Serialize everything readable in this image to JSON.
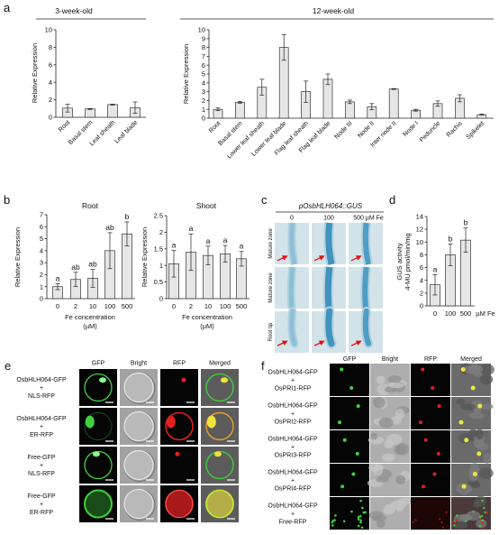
{
  "panel_labels": [
    "a",
    "b",
    "c",
    "d",
    "e",
    "f"
  ],
  "colors": {
    "bar_fill": "#e6e6e6",
    "bar_stroke": "#333333",
    "gfp": "#3fd23f",
    "rfp": "#e02020",
    "merge_yellow": "#f0e43a",
    "gus_stain": "#3f93bd",
    "arrow": "#e01010"
  },
  "chart_data": [
    {
      "type": "bar",
      "title": "3-week-old",
      "ylabel": "Relative Expression",
      "categories": [
        "Root",
        "Basal stem",
        "Leaf sheath",
        "Leaf blade"
      ],
      "values": [
        1.05,
        0.95,
        1.45,
        1.1
      ],
      "errors": [
        0.45,
        0.05,
        0.05,
        0.65
      ],
      "ylim": [
        0,
        10
      ],
      "yticks": [
        0,
        2,
        4,
        6,
        8,
        10
      ]
    },
    {
      "type": "bar",
      "title": "12-week-old",
      "ylabel": "Relative Expression",
      "categories": [
        "Root",
        "Basal stem",
        "Lower leaf sheath",
        "Lower leaf blade",
        "Flag leaf sheath",
        "Flag leaf blade",
        "Node III",
        "Node II",
        "Inter node II",
        "Node I",
        "Peduncle",
        "Rachis",
        "Spikelet"
      ],
      "values": [
        1.0,
        1.8,
        3.5,
        8.0,
        3.0,
        4.4,
        1.85,
        1.3,
        3.3,
        0.9,
        1.65,
        2.25,
        0.4
      ],
      "errors": [
        0.15,
        0.1,
        0.9,
        1.45,
        1.2,
        0.6,
        0.2,
        0.35,
        0.05,
        0.1,
        0.3,
        0.4,
        0.05
      ],
      "ylim": [
        0,
        10
      ],
      "yticks": [
        0,
        1,
        2,
        3,
        4,
        5,
        6,
        7,
        8,
        9,
        10
      ]
    },
    {
      "type": "bar",
      "title": "Root",
      "ylabel": "Relative Expression",
      "xlabel": [
        "Fe concentration",
        "(µM)"
      ],
      "categories": [
        "0",
        "2",
        "10",
        "100",
        "500"
      ],
      "values": [
        1.0,
        1.6,
        1.7,
        4.0,
        5.4
      ],
      "errors": [
        0.25,
        0.6,
        0.75,
        1.5,
        1.0
      ],
      "letters": [
        "a",
        "ab",
        "ab",
        "ab",
        "b"
      ],
      "ylim": [
        0,
        7
      ],
      "yticks": [
        0,
        1,
        2,
        3,
        4,
        5,
        6,
        7
      ]
    },
    {
      "type": "bar",
      "title": "Shoot",
      "ylabel": "Relative Expression",
      "xlabel": [
        "Fe concentration",
        "(µM)"
      ],
      "categories": [
        "0",
        "2",
        "10",
        "100",
        "500"
      ],
      "values": [
        1.05,
        1.4,
        1.3,
        1.35,
        1.2
      ],
      "errors": [
        0.4,
        0.55,
        0.28,
        0.25,
        0.22
      ],
      "letters": [
        "a",
        "a",
        "a",
        "a",
        "a"
      ],
      "ylim": [
        0,
        2.5
      ],
      "yticks": [
        0,
        0.5,
        1,
        1.5,
        2,
        2.5
      ]
    },
    {
      "type": "bar",
      "ylabel": [
        "GUS activity",
        "4-MU pmol/min/mg"
      ],
      "categories": [
        "0",
        "100",
        "500"
      ],
      "xunit": "µM Fe",
      "values": [
        3.3,
        8.0,
        10.3
      ],
      "errors": [
        1.6,
        1.7,
        1.9
      ],
      "letters": [
        "a",
        "b",
        "b"
      ],
      "ylim": [
        0,
        14
      ],
      "yticks": [
        0,
        2,
        4,
        6,
        8,
        10,
        12,
        14
      ]
    }
  ],
  "panel_c": {
    "title": "pOsbHLH064::GUS",
    "columns": [
      "0",
      "100",
      "500 µM Fe"
    ],
    "rows": [
      "Mature zone",
      "Mature zone",
      "Root tip"
    ]
  },
  "panel_e": {
    "columns": [
      "GFP",
      "Bright",
      "RFP",
      "Merged"
    ],
    "rows": [
      [
        "OsbHLH064-GFP",
        "+",
        "NLS-RFP"
      ],
      [
        "OsbHLH064-GFP",
        "+",
        "ER-RFP"
      ],
      [
        "Free-GFP",
        "+",
        "NLS-RFP"
      ],
      [
        "Free-GFP",
        "+",
        "ER-RFP"
      ]
    ]
  },
  "panel_f": {
    "columns": [
      "GFP",
      "Bright",
      "RFP",
      "Merged"
    ],
    "rows": [
      [
        "OsbHLH064-GFP",
        "+",
        "OsPRI1-RFP"
      ],
      [
        "OsbHLH064-GFP",
        "+",
        "OsPRI2-RFP"
      ],
      [
        "OsbHLH064-GFP",
        "+",
        "OsPRI3-RFP"
      ],
      [
        "OsbHLH064-GFP",
        "+",
        "OsPRI4-RFP"
      ],
      [
        "OsbHLH064-GFP",
        "+",
        "Free-RFP"
      ]
    ]
  }
}
